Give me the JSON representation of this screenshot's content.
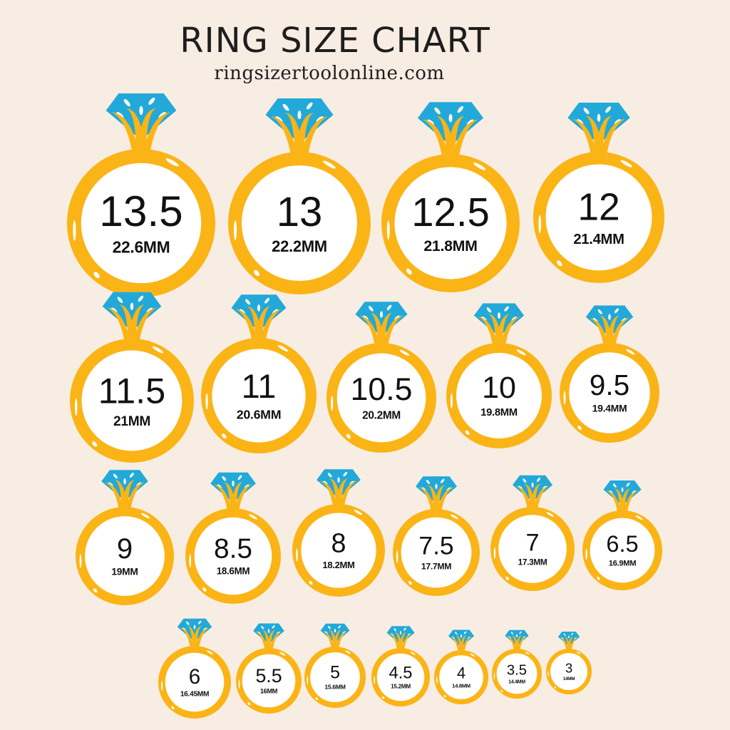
{
  "header": {
    "title": "RING SIZE CHART",
    "website": "ringsizertoolonline.com"
  },
  "colors": {
    "background": "#f8ede3",
    "ring": "#fbb416",
    "gem": "#22a9d9",
    "inner": "#ffffff",
    "text": "#111111"
  },
  "icon": "diamond-ring-icon",
  "rings": [
    {
      "size": "13.5",
      "mm": "22.6MM"
    },
    {
      "size": "13",
      "mm": "22.2MM"
    },
    {
      "size": "12.5",
      "mm": "21.8MM"
    },
    {
      "size": "12",
      "mm": "21.4MM"
    },
    {
      "size": "11.5",
      "mm": "21MM"
    },
    {
      "size": "11",
      "mm": "20.6MM"
    },
    {
      "size": "10.5",
      "mm": "20.2MM"
    },
    {
      "size": "10",
      "mm": "19.8MM"
    },
    {
      "size": "9.5",
      "mm": "19.4MM"
    },
    {
      "size": "9",
      "mm": "19MM"
    },
    {
      "size": "8.5",
      "mm": "18.6MM"
    },
    {
      "size": "8",
      "mm": "18.2MM"
    },
    {
      "size": "7.5",
      "mm": "17.7MM"
    },
    {
      "size": "7",
      "mm": "17.3MM"
    },
    {
      "size": "6.5",
      "mm": "16.9MM"
    },
    {
      "size": "6",
      "mm": "16.45MM"
    },
    {
      "size": "5.5",
      "mm": "16MM"
    },
    {
      "size": "5",
      "mm": "15.6MM"
    },
    {
      "size": "4.5",
      "mm": "15.2MM"
    },
    {
      "size": "4",
      "mm": "14.8MM"
    },
    {
      "size": "3.5",
      "mm": "14.4MM"
    },
    {
      "size": "3",
      "mm": "14MM"
    }
  ]
}
